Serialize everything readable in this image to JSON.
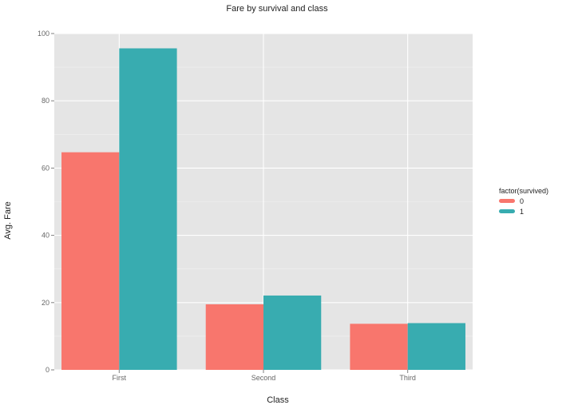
{
  "chart_data": {
    "type": "bar",
    "title": "Fare by survival and class",
    "xlabel": "Class",
    "ylabel": "Avg. Fare",
    "categories": [
      "First",
      "Second",
      "Third"
    ],
    "series": [
      {
        "name": "0",
        "color": "#F8766D",
        "values": [
          64.7,
          19.5,
          13.7
        ]
      },
      {
        "name": "1",
        "color": "#38ACB0",
        "values": [
          95.6,
          22.1,
          13.9
        ]
      }
    ],
    "ylim": [
      0,
      100
    ],
    "yticks": [
      0,
      20,
      40,
      60,
      80,
      100
    ],
    "grid": true,
    "legend": {
      "title": "factor(survived)",
      "placement": "right"
    },
    "panel_color": "#E5E5E5",
    "grid_color": "#FFFFFF"
  }
}
